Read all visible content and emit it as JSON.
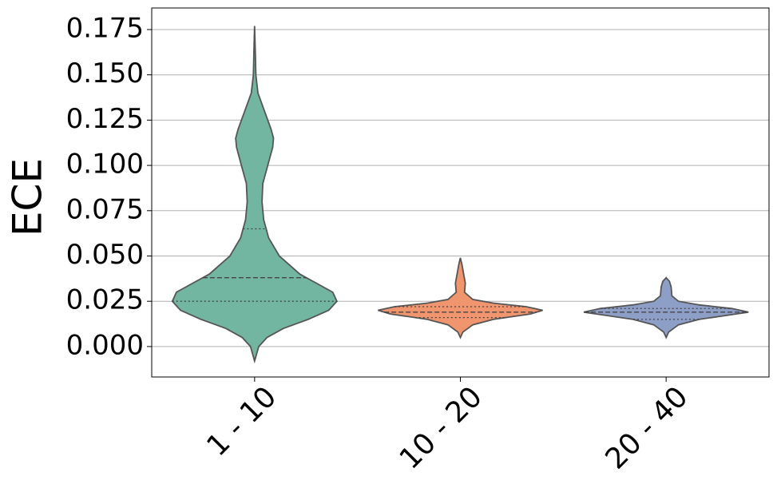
{
  "chart_data": {
    "type": "violin",
    "ylabel": "ECE",
    "categories": [
      "1 - 10",
      "10 - 20",
      "20 - 40"
    ],
    "ylim": [
      -0.0168,
      0.1869
    ],
    "yticks": [
      {
        "value": 0,
        "label": "0.000"
      },
      0.025,
      {
        "value": 0.05,
        "label": "0.050"
      },
      0.075,
      {
        "value": 0.1,
        "label": "0.100"
      },
      0.125,
      {
        "value": 0.15,
        "label": "0.150"
      },
      0.175
    ],
    "grid": true,
    "violins": [
      {
        "color": "#72b6a1",
        "min": -0.008,
        "max": 0.177,
        "q1": 0.025,
        "median": 0.038,
        "q3": 0.065,
        "density_y": [
          -0.008,
          0.0,
          0.005,
          0.01,
          0.015,
          0.02,
          0.025,
          0.03,
          0.035,
          0.04,
          0.05,
          0.06,
          0.07,
          0.08,
          0.09,
          0.1,
          0.11,
          0.115,
          0.12,
          0.13,
          0.14,
          0.15,
          0.16,
          0.177
        ],
        "density": [
          0,
          0.05,
          0.15,
          0.35,
          0.65,
          0.9,
          1.0,
          0.95,
          0.75,
          0.55,
          0.3,
          0.17,
          0.11,
          0.09,
          0.1,
          0.16,
          0.22,
          0.23,
          0.2,
          0.12,
          0.04,
          0.015,
          0.01,
          0
        ]
      },
      {
        "color": "#f0956e",
        "min": 0.005,
        "max": 0.049,
        "q1": 0.016,
        "median": 0.019,
        "q3": 0.022,
        "density_y": [
          0.005,
          0.008,
          0.012,
          0.015,
          0.018,
          0.02,
          0.022,
          0.024,
          0.026,
          0.03,
          0.035,
          0.04,
          0.045,
          0.049
        ],
        "density": [
          0,
          0.03,
          0.15,
          0.4,
          0.85,
          1.0,
          0.8,
          0.4,
          0.15,
          0.05,
          0.06,
          0.04,
          0.02,
          0
        ]
      },
      {
        "color": "#8e9fc7",
        "min": 0.005,
        "max": 0.038,
        "q1": 0.015,
        "median": 0.019,
        "q3": 0.021,
        "density_y": [
          0.005,
          0.008,
          0.012,
          0.015,
          0.018,
          0.019,
          0.021,
          0.023,
          0.025,
          0.028,
          0.033,
          0.036,
          0.038
        ],
        "density": [
          0,
          0.03,
          0.15,
          0.4,
          0.85,
          1.0,
          0.8,
          0.4,
          0.15,
          0.07,
          0.06,
          0.04,
          0
        ]
      }
    ]
  }
}
